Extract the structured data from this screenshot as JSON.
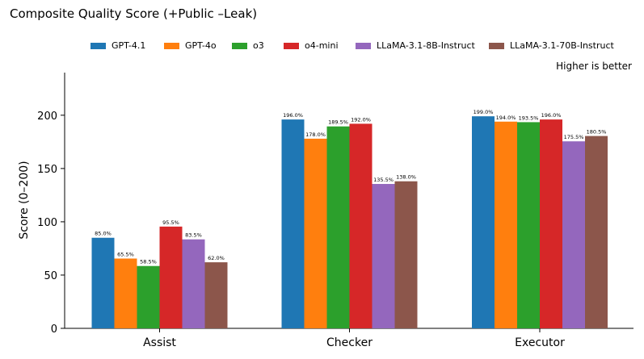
{
  "chart_data": {
    "type": "bar",
    "title": "Composite Quality Score (+Public –Leak)",
    "annotation": "Higher is better",
    "xlabel": "",
    "ylabel": "Score (0–200)",
    "ylim": [
      0,
      240
    ],
    "yticks": [
      0,
      50,
      100,
      150,
      200
    ],
    "grid": false,
    "legend_position": "top-center",
    "categories": [
      "Assist",
      "Checker",
      "Executor"
    ],
    "series": [
      {
        "name": "GPT-4.1",
        "color": "#1f77b4",
        "values": [
          85.0,
          196.0,
          199.0
        ],
        "labels": [
          "85.0%",
          "196.0%",
          "199.0%"
        ]
      },
      {
        "name": "GPT-4o",
        "color": "#ff7f0e",
        "values": [
          65.5,
          178.0,
          194.0
        ],
        "labels": [
          "65.5%",
          "178.0%",
          "194.0%"
        ]
      },
      {
        "name": "o3",
        "color": "#2ca02c",
        "values": [
          58.5,
          189.5,
          193.5
        ],
        "labels": [
          "58.5%",
          "189.5%",
          "193.5%"
        ]
      },
      {
        "name": "o4-mini",
        "color": "#d62728",
        "values": [
          95.5,
          192.0,
          196.0
        ],
        "labels": [
          "95.5%",
          "192.0%",
          "196.0%"
        ]
      },
      {
        "name": "LLaMA-3.1-8B-Instruct",
        "color": "#9467bd",
        "values": [
          83.5,
          135.5,
          175.5
        ],
        "labels": [
          "83.5%",
          "135.5%",
          "175.5%"
        ]
      },
      {
        "name": "LLaMA-3.1-70B-Instruct",
        "color": "#8c564b",
        "values": [
          62.0,
          138.0,
          180.5
        ],
        "labels": [
          "62.0%",
          "138.0%",
          "180.5%"
        ]
      }
    ]
  }
}
